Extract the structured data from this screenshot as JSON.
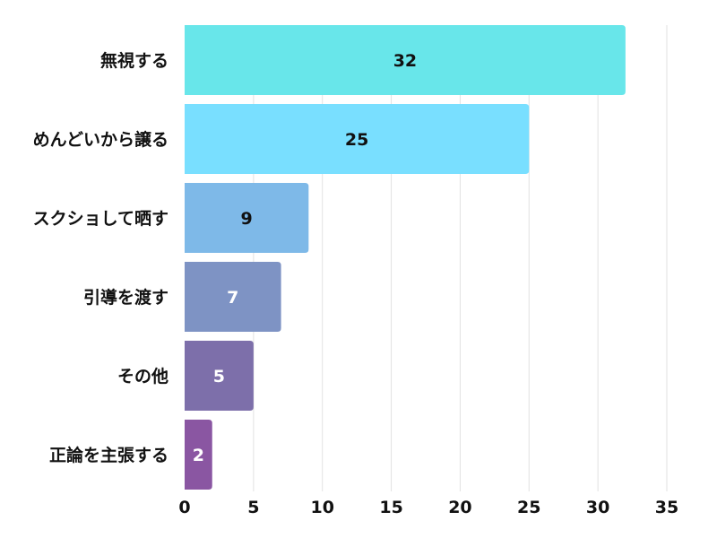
{
  "chart_data": {
    "type": "bar",
    "orientation": "horizontal",
    "categories": [
      "無視する",
      "めんどいから譲る",
      "スクショして晒す",
      "引導を渡す",
      "その他",
      "正論を主張する"
    ],
    "values": [
      32,
      25,
      9,
      7,
      5,
      2
    ],
    "bar_colors": [
      "#68E6EA",
      "#79DFFF",
      "#7EB9E8",
      "#7E93C4",
      "#7D6FAA",
      "#8A56A2"
    ],
    "label_colors": [
      "#111111",
      "#111111",
      "#111111",
      "#ffffff",
      "#ffffff",
      "#ffffff"
    ],
    "xlim": [
      0,
      35
    ],
    "xticks": [
      0,
      5,
      10,
      15,
      20,
      25,
      30,
      35
    ],
    "grid": true,
    "title": "",
    "xlabel": "",
    "ylabel": ""
  }
}
